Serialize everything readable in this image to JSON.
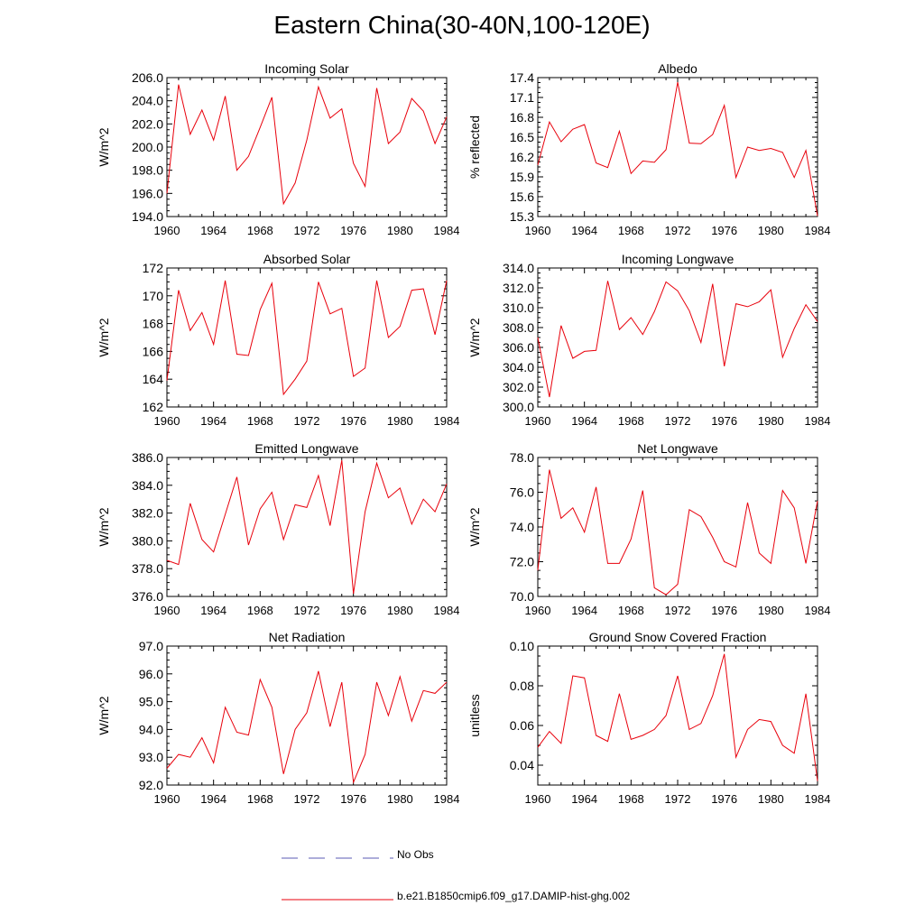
{
  "title": "Eastern China(30-40N,100-120E)",
  "colors": {
    "model": "#e8000b",
    "no_obs": "#5b5bb5",
    "axis": "#000000"
  },
  "legend": {
    "no_obs_label": "No Obs",
    "model_label": "b.e21.B1850cmip6.f09_g17.DAMIP-hist-ghg.002"
  },
  "chart_data": [
    {
      "type": "line",
      "title": "Incoming Solar",
      "ylabel": "W/m^2",
      "xlim": [
        1960,
        1984
      ],
      "ylim": [
        194.0,
        206.0
      ],
      "xticks": [
        1960,
        1964,
        1968,
        1972,
        1976,
        1980,
        1984
      ],
      "yticks": [
        194.0,
        196.0,
        198.0,
        200.0,
        202.0,
        204.0,
        206.0
      ],
      "ytick_labels": [
        "194.0",
        "196.0",
        "198.0",
        "200.0",
        "202.0",
        "204.0",
        "206.0"
      ],
      "x": [
        1960,
        1961,
        1962,
        1963,
        1964,
        1965,
        1966,
        1967,
        1968,
        1969,
        1970,
        1971,
        1972,
        1973,
        1974,
        1975,
        1976,
        1977,
        1978,
        1979,
        1980,
        1981,
        1982,
        1983,
        1984
      ],
      "series": [
        {
          "name": "b.e21.B1850cmip6.f09_g17.DAMIP-hist-ghg.002",
          "values": [
            196.0,
            205.4,
            201.1,
            203.2,
            200.6,
            204.4,
            198.0,
            199.2,
            201.7,
            204.3,
            195.1,
            196.9,
            200.6,
            205.2,
            202.5,
            203.3,
            198.6,
            196.6,
            205.1,
            200.3,
            201.3,
            204.2,
            203.1,
            200.3,
            202.6
          ]
        }
      ]
    },
    {
      "type": "line",
      "title": "Albedo",
      "ylabel": "% reflected",
      "xlim": [
        1960,
        1984
      ],
      "ylim": [
        15.3,
        17.4
      ],
      "xticks": [
        1960,
        1964,
        1968,
        1972,
        1976,
        1980,
        1984
      ],
      "yticks": [
        15.3,
        15.6,
        15.9,
        16.2,
        16.5,
        16.8,
        17.1,
        17.4
      ],
      "ytick_labels": [
        "15.3",
        "15.6",
        "15.9",
        "16.2",
        "16.5",
        "16.8",
        "17.1",
        "17.4"
      ],
      "x": [
        1960,
        1961,
        1962,
        1963,
        1964,
        1965,
        1966,
        1967,
        1968,
        1969,
        1970,
        1971,
        1972,
        1973,
        1974,
        1975,
        1976,
        1977,
        1978,
        1979,
        1980,
        1981,
        1982,
        1983,
        1984
      ],
      "series": [
        {
          "name": "b.e21.B1850cmip6.f09_g17.DAMIP-hist-ghg.002",
          "values": [
            16.08,
            16.73,
            16.43,
            16.62,
            16.69,
            16.11,
            16.04,
            16.59,
            15.95,
            16.14,
            16.12,
            16.31,
            17.33,
            16.41,
            16.4,
            16.54,
            16.98,
            15.89,
            16.35,
            16.3,
            16.33,
            16.27,
            15.89,
            16.3,
            15.31
          ]
        }
      ]
    },
    {
      "type": "line",
      "title": "Absorbed Solar",
      "ylabel": "W/m^2",
      "xlim": [
        1960,
        1984
      ],
      "ylim": [
        162,
        172
      ],
      "xticks": [
        1960,
        1964,
        1968,
        1972,
        1976,
        1980,
        1984
      ],
      "yticks": [
        162,
        164,
        166,
        168,
        170,
        172
      ],
      "ytick_labels": [
        "162",
        "164",
        "166",
        "168",
        "170",
        "172"
      ],
      "x": [
        1960,
        1961,
        1962,
        1963,
        1964,
        1965,
        1966,
        1967,
        1968,
        1969,
        1970,
        1971,
        1972,
        1973,
        1974,
        1975,
        1976,
        1977,
        1978,
        1979,
        1980,
        1981,
        1982,
        1983,
        1984
      ],
      "series": [
        {
          "name": "b.e21.B1850cmip6.f09_g17.DAMIP-hist-ghg.002",
          "values": [
            163.9,
            170.4,
            167.5,
            168.8,
            166.5,
            171.1,
            165.8,
            165.7,
            169.0,
            170.9,
            162.9,
            164.0,
            165.3,
            171.0,
            168.7,
            169.1,
            164.2,
            164.8,
            171.1,
            167.0,
            167.8,
            170.4,
            170.5,
            167.2,
            171.1
          ]
        }
      ]
    },
    {
      "type": "line",
      "title": "Incoming Longwave",
      "ylabel": "W/m^2",
      "xlim": [
        1960,
        1984
      ],
      "ylim": [
        300.0,
        314.0
      ],
      "xticks": [
        1960,
        1964,
        1968,
        1972,
        1976,
        1980,
        1984
      ],
      "yticks": [
        300.0,
        302.0,
        304.0,
        306.0,
        308.0,
        310.0,
        312.0,
        314.0
      ],
      "ytick_labels": [
        "300.0",
        "302.0",
        "304.0",
        "306.0",
        "308.0",
        "310.0",
        "312.0",
        "314.0"
      ],
      "x": [
        1960,
        1961,
        1962,
        1963,
        1964,
        1965,
        1966,
        1967,
        1968,
        1969,
        1970,
        1971,
        1972,
        1973,
        1974,
        1975,
        1976,
        1977,
        1978,
        1979,
        1980,
        1981,
        1982,
        1983,
        1984
      ],
      "series": [
        {
          "name": "b.e21.B1850cmip6.f09_g17.DAMIP-hist-ghg.002",
          "values": [
            307.0,
            301.0,
            308.2,
            304.9,
            305.6,
            305.7,
            312.7,
            307.8,
            309.0,
            307.3,
            309.6,
            312.6,
            311.7,
            309.7,
            306.5,
            312.4,
            304.1,
            310.4,
            310.1,
            310.6,
            311.8,
            305.0,
            307.9,
            310.3,
            308.6
          ]
        }
      ]
    },
    {
      "type": "line",
      "title": "Emitted Longwave",
      "ylabel": "W/m^2",
      "xlim": [
        1960,
        1984
      ],
      "ylim": [
        376.0,
        386.0
      ],
      "xticks": [
        1960,
        1964,
        1968,
        1972,
        1976,
        1980,
        1984
      ],
      "yticks": [
        376.0,
        378.0,
        380.0,
        382.0,
        384.0,
        386.0
      ],
      "ytick_labels": [
        "376.0",
        "378.0",
        "380.0",
        "382.0",
        "384.0",
        "386.0"
      ],
      "x": [
        1960,
        1961,
        1962,
        1963,
        1964,
        1965,
        1966,
        1967,
        1968,
        1969,
        1970,
        1971,
        1972,
        1973,
        1974,
        1975,
        1976,
        1977,
        1978,
        1979,
        1980,
        1981,
        1982,
        1983,
        1984
      ],
      "series": [
        {
          "name": "b.e21.B1850cmip6.f09_g17.DAMIP-hist-ghg.002",
          "values": [
            378.6,
            378.3,
            382.7,
            380.1,
            379.2,
            381.9,
            384.6,
            379.7,
            382.3,
            383.5,
            380.1,
            382.6,
            382.4,
            384.7,
            381.1,
            385.8,
            376.2,
            382.1,
            385.6,
            383.1,
            383.8,
            381.2,
            383.0,
            382.1,
            384.1
          ]
        }
      ]
    },
    {
      "type": "line",
      "title": "Net Longwave",
      "ylabel": "W/m^2",
      "xlim": [
        1960,
        1984
      ],
      "ylim": [
        70.0,
        78.0
      ],
      "xticks": [
        1960,
        1964,
        1968,
        1972,
        1976,
        1980,
        1984
      ],
      "yticks": [
        70.0,
        72.0,
        74.0,
        76.0,
        78.0
      ],
      "ytick_labels": [
        "70.0",
        "72.0",
        "74.0",
        "76.0",
        "78.0"
      ],
      "x": [
        1960,
        1961,
        1962,
        1963,
        1964,
        1965,
        1966,
        1967,
        1968,
        1969,
        1970,
        1971,
        1972,
        1973,
        1974,
        1975,
        1976,
        1977,
        1978,
        1979,
        1980,
        1981,
        1982,
        1983,
        1984
      ],
      "series": [
        {
          "name": "b.e21.B1850cmip6.f09_g17.DAMIP-hist-ghg.002",
          "values": [
            71.5,
            77.3,
            74.5,
            75.1,
            73.7,
            76.3,
            71.9,
            71.9,
            73.3,
            76.1,
            70.5,
            70.1,
            70.7,
            75.0,
            74.6,
            73.4,
            72.0,
            71.7,
            75.4,
            72.5,
            71.9,
            76.1,
            75.1,
            71.9,
            75.5
          ]
        }
      ]
    },
    {
      "type": "line",
      "title": "Net Radiation",
      "ylabel": "W/m^2",
      "xlim": [
        1960,
        1984
      ],
      "ylim": [
        92.0,
        97.0
      ],
      "xticks": [
        1960,
        1964,
        1968,
        1972,
        1976,
        1980,
        1984
      ],
      "yticks": [
        92.0,
        93.0,
        94.0,
        95.0,
        96.0,
        97.0
      ],
      "ytick_labels": [
        "92.0",
        "93.0",
        "94.0",
        "95.0",
        "96.0",
        "97.0"
      ],
      "x": [
        1960,
        1961,
        1962,
        1963,
        1964,
        1965,
        1966,
        1967,
        1968,
        1969,
        1970,
        1971,
        1972,
        1973,
        1974,
        1975,
        1976,
        1977,
        1978,
        1979,
        1980,
        1981,
        1982,
        1983,
        1984
      ],
      "series": [
        {
          "name": "b.e21.B1850cmip6.f09_g17.DAMIP-hist-ghg.002",
          "values": [
            92.6,
            93.1,
            93.0,
            93.7,
            92.8,
            94.8,
            93.9,
            93.8,
            95.8,
            94.8,
            92.4,
            94.0,
            94.6,
            96.1,
            94.1,
            95.7,
            92.1,
            93.1,
            95.7,
            94.5,
            95.9,
            94.3,
            95.4,
            95.3,
            95.7
          ]
        }
      ]
    },
    {
      "type": "line",
      "title": "Ground Snow Covered Fraction",
      "ylabel": "unitless",
      "xlim": [
        1960,
        1984
      ],
      "ylim": [
        0.03,
        0.1
      ],
      "xticks": [
        1960,
        1964,
        1968,
        1972,
        1976,
        1980,
        1984
      ],
      "yticks": [
        0.04,
        0.06,
        0.08,
        0.1
      ],
      "ytick_labels": [
        "0.04",
        "0.06",
        "0.08",
        "0.10"
      ],
      "x": [
        1960,
        1961,
        1962,
        1963,
        1964,
        1965,
        1966,
        1967,
        1968,
        1969,
        1970,
        1971,
        1972,
        1973,
        1974,
        1975,
        1976,
        1977,
        1978,
        1979,
        1980,
        1981,
        1982,
        1983,
        1984
      ],
      "series": [
        {
          "name": "b.e21.B1850cmip6.f09_g17.DAMIP-hist-ghg.002",
          "values": [
            0.049,
            0.057,
            0.051,
            0.085,
            0.084,
            0.055,
            0.052,
            0.076,
            0.053,
            0.055,
            0.058,
            0.065,
            0.085,
            0.058,
            0.061,
            0.075,
            0.096,
            0.044,
            0.058,
            0.063,
            0.062,
            0.05,
            0.046,
            0.076,
            0.032
          ]
        }
      ]
    }
  ]
}
